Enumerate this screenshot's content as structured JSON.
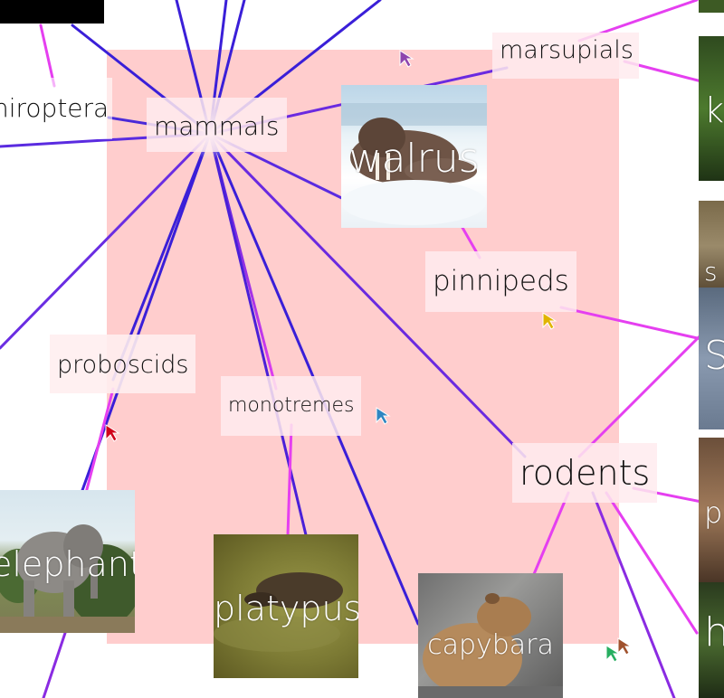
{
  "nodes": {
    "mammals": "mammals",
    "marsupials": "marsupials",
    "chiroptera": "hiroptera",
    "pinnipeds": "pinnipeds",
    "proboscids": "proboscids",
    "monotremes": "monotremes",
    "rodents": "rodents",
    "left_edge_fragment": "l"
  },
  "images": {
    "walrus": "walrus",
    "elephant": "elephant",
    "platypus": "platypus",
    "capybara": "capybara"
  },
  "right_edge_fragments": {
    "a": "k",
    "b": "s",
    "c": "S",
    "d": "p",
    "e": "h"
  },
  "colors": {
    "pink_area": "#ffcdcd",
    "edge_blue": "#3a1fd8",
    "edge_magenta": "#e53ff0",
    "edge_violet": "#8a2be2",
    "label_bg": "#ffebee"
  },
  "cursors": [
    {
      "name": "purple-cursor",
      "color": "#8e44ad"
    },
    {
      "name": "yellow-cursor",
      "color": "#e0b400"
    },
    {
      "name": "red-cursor",
      "color": "#d0021b"
    },
    {
      "name": "blue-cursor",
      "color": "#2e86c1"
    },
    {
      "name": "green-cursor",
      "color": "#27ae60"
    },
    {
      "name": "brown-cursor",
      "color": "#a0522d"
    }
  ]
}
